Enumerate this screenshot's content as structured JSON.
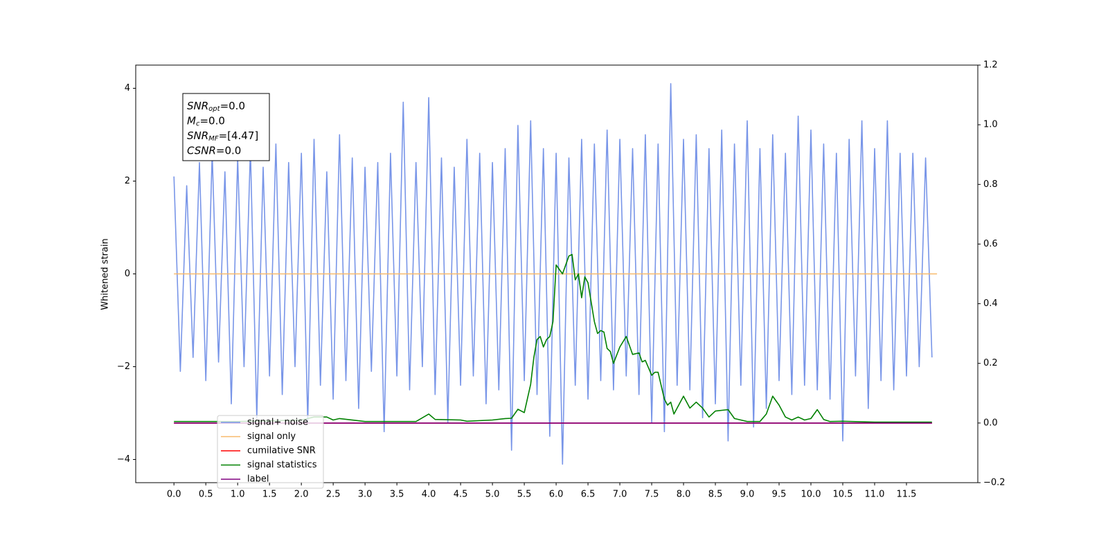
{
  "chart_data": {
    "type": "line",
    "ylabel": "Whitened strain",
    "annotations": [
      {
        "symbol": "SNR",
        "sub": "opt",
        "value": "=0.0"
      },
      {
        "symbol": "M",
        "sub": "c",
        "value": "=0.0"
      },
      {
        "symbol": "SNR",
        "sub": "MF",
        "value": "=[4.47]"
      },
      {
        "symbol": "CSNR",
        "value": "=0.0"
      }
    ],
    "xlim": [
      -0.6,
      12.62
    ],
    "xticks": [
      {
        "value": 0,
        "label": "0.0"
      },
      0.5,
      {
        "value": 1,
        "label": "1.0"
      },
      1.5,
      {
        "value": 2,
        "label": "2.0"
      },
      2.5,
      {
        "value": 3,
        "label": "3.0"
      },
      3.5,
      {
        "value": 4,
        "label": "4.0"
      },
      4.5,
      {
        "value": 5,
        "label": "5.0"
      },
      5.5,
      {
        "value": 6,
        "label": "6.0"
      },
      6.5,
      {
        "value": 7,
        "label": "7.0"
      },
      7.5,
      {
        "value": 8,
        "label": "8.0"
      },
      8.5,
      {
        "value": 9,
        "label": "9.0"
      },
      9.5,
      {
        "value": 10,
        "label": "10.0"
      },
      10.5,
      {
        "value": 11,
        "label": "11.0"
      },
      11.5
    ],
    "ylim": [
      -4.5,
      4.5
    ],
    "yticks": [
      -4,
      -2,
      0,
      2,
      4
    ],
    "y2lim": [
      -0.2,
      1.2
    ],
    "y2ticks": [
      -0.2,
      {
        "value": 0,
        "label": "0.0"
      },
      0.2,
      0.4,
      0.6,
      0.8,
      {
        "value": 1,
        "label": "1.0"
      },
      1.2
    ],
    "legend": "lower left",
    "series": [
      {
        "name": "signal+ noise",
        "color": "#7895e8",
        "x": [
          0,
          0.1,
          0.2,
          0.3,
          0.4,
          0.5,
          0.6,
          0.7,
          0.8,
          0.9,
          1,
          1.1,
          1.2,
          1.3,
          1.4,
          1.5,
          1.6,
          1.7,
          1.8,
          1.9,
          2,
          2.1,
          2.2,
          2.3,
          2.4,
          2.5,
          2.6,
          2.7,
          2.8,
          2.9,
          3,
          3.1,
          3.2,
          3.3,
          3.4,
          3.5,
          3.6,
          3.7,
          3.8,
          3.9,
          4,
          4.1,
          4.2,
          4.3,
          4.4,
          4.5,
          4.6,
          4.7,
          4.8,
          4.9,
          5,
          5.1,
          5.2,
          5.3,
          5.4,
          5.5,
          5.6,
          5.7,
          5.8,
          5.9,
          6,
          6.1,
          6.2,
          6.3,
          6.4,
          6.5,
          6.6,
          6.7,
          6.8,
          6.9,
          7,
          7.1,
          7.2,
          7.3,
          7.4,
          7.5,
          7.6,
          7.7,
          7.8,
          7.9,
          8,
          8.1,
          8.2,
          8.3,
          8.4,
          8.5,
          8.6,
          8.7,
          8.8,
          8.9,
          9,
          9.1,
          9.2,
          9.3,
          9.4,
          9.5,
          9.6,
          9.7,
          9.8,
          9.9,
          10,
          10.1,
          10.2,
          10.3,
          10.4,
          10.5,
          10.6,
          10.7,
          10.8,
          10.9,
          11,
          11.1,
          11.2,
          11.3,
          11.4,
          11.5,
          11.6,
          11.7,
          11.8,
          11.9
        ],
        "values": [
          2.1,
          -2.1,
          1.9,
          -1.8,
          2.4,
          -2.3,
          2.6,
          -1.9,
          2.2,
          -2.8,
          2.5,
          -2.0,
          2.7,
          -3.1,
          2.3,
          -2.2,
          2.8,
          -2.6,
          2.4,
          -2.0,
          2.6,
          -3.2,
          2.9,
          -2.4,
          2.2,
          -2.7,
          3.0,
          -2.3,
          2.5,
          -2.9,
          2.3,
          -2.1,
          2.4,
          -3.4,
          2.6,
          -2.2,
          3.7,
          -2.5,
          2.4,
          -2.0,
          3.8,
          -2.6,
          2.5,
          -3.2,
          2.3,
          -2.4,
          2.9,
          -2.2,
          2.6,
          -2.8,
          2.4,
          -2.5,
          2.7,
          -3.8,
          3.2,
          -2.3,
          3.3,
          -2.6,
          2.7,
          -3.5,
          2.6,
          -4.1,
          2.5,
          -2.4,
          2.9,
          -2.7,
          2.8,
          -2.3,
          3.1,
          -2.5,
          2.9,
          -2.2,
          2.7,
          -2.6,
          3.0,
          -3.2,
          2.8,
          -3.4,
          4.1,
          -2.4,
          2.9,
          -2.5,
          3.0,
          -3.1,
          2.7,
          -2.8,
          3.1,
          -3.6,
          2.8,
          -2.4,
          3.3,
          -3.3,
          2.7,
          -2.9,
          3.0,
          -2.3,
          2.6,
          -2.6,
          3.4,
          -2.4,
          3.1,
          -2.5,
          2.8,
          -2.7,
          2.6,
          -3.6,
          2.9,
          -2.2,
          3.3,
          -2.9,
          2.7,
          -2.3,
          3.3,
          -2.5,
          2.6,
          -2.2,
          2.6,
          -2.0,
          2.5,
          -1.8
        ]
      },
      {
        "name": "signal only",
        "color": "#f7b96a",
        "x": [
          0,
          11.98
        ],
        "values": [
          0,
          0
        ]
      },
      {
        "name": "cumilative SNR",
        "color": "#ff0000",
        "axis": "y2",
        "x": [
          0,
          11.9
        ],
        "values": [
          0,
          0
        ]
      },
      {
        "name": "signal statistics",
        "color": "#008000",
        "axis": "y2",
        "x": [
          0,
          1,
          2,
          2.2,
          2.4,
          2.5,
          2.6,
          3,
          3.8,
          4,
          4.1,
          4.5,
          4.6,
          5,
          5.2,
          5.3,
          5.4,
          5.5,
          5.6,
          5.65,
          5.7,
          5.75,
          5.8,
          5.85,
          5.9,
          5.95,
          6,
          6.1,
          6.2,
          6.25,
          6.3,
          6.35,
          6.4,
          6.45,
          6.5,
          6.6,
          6.65,
          6.7,
          6.75,
          6.8,
          6.85,
          6.9,
          7,
          7.1,
          7.2,
          7.3,
          7.35,
          7.4,
          7.5,
          7.55,
          7.6,
          7.7,
          7.75,
          7.8,
          7.85,
          7.9,
          8,
          8.1,
          8.2,
          8.3,
          8.4,
          8.5,
          8.7,
          8.8,
          8.9,
          9,
          9.2,
          9.3,
          9.4,
          9.5,
          9.6,
          9.7,
          9.8,
          9.9,
          10,
          10.1,
          10.2,
          10.3,
          10.5,
          10.8,
          11,
          11.5,
          11.9
        ],
        "values": [
          0.005,
          0.005,
          0.01,
          0.02,
          0.02,
          0.01,
          0.015,
          0.005,
          0.005,
          0.03,
          0.012,
          0.01,
          0.006,
          0.01,
          0.015,
          0.016,
          0.046,
          0.035,
          0.13,
          0.22,
          0.28,
          0.29,
          0.255,
          0.28,
          0.29,
          0.34,
          0.53,
          0.5,
          0.56,
          0.565,
          0.48,
          0.5,
          0.42,
          0.49,
          0.47,
          0.34,
          0.3,
          0.31,
          0.305,
          0.25,
          0.24,
          0.2,
          0.255,
          0.29,
          0.23,
          0.235,
          0.205,
          0.21,
          0.16,
          0.17,
          0.17,
          0.08,
          0.06,
          0.07,
          0.03,
          0.05,
          0.09,
          0.05,
          0.07,
          0.05,
          0.02,
          0.04,
          0.045,
          0.015,
          0.01,
          0.005,
          0.005,
          0.03,
          0.09,
          0.06,
          0.02,
          0.01,
          0.02,
          0.01,
          0.015,
          0.045,
          0.012,
          0.005,
          0.006,
          0.004,
          0.003,
          0.003,
          0.003
        ]
      },
      {
        "name": "label",
        "color": "#800080",
        "axis": "y2",
        "x": [
          0,
          11.9
        ],
        "values": [
          0,
          0
        ]
      }
    ]
  }
}
